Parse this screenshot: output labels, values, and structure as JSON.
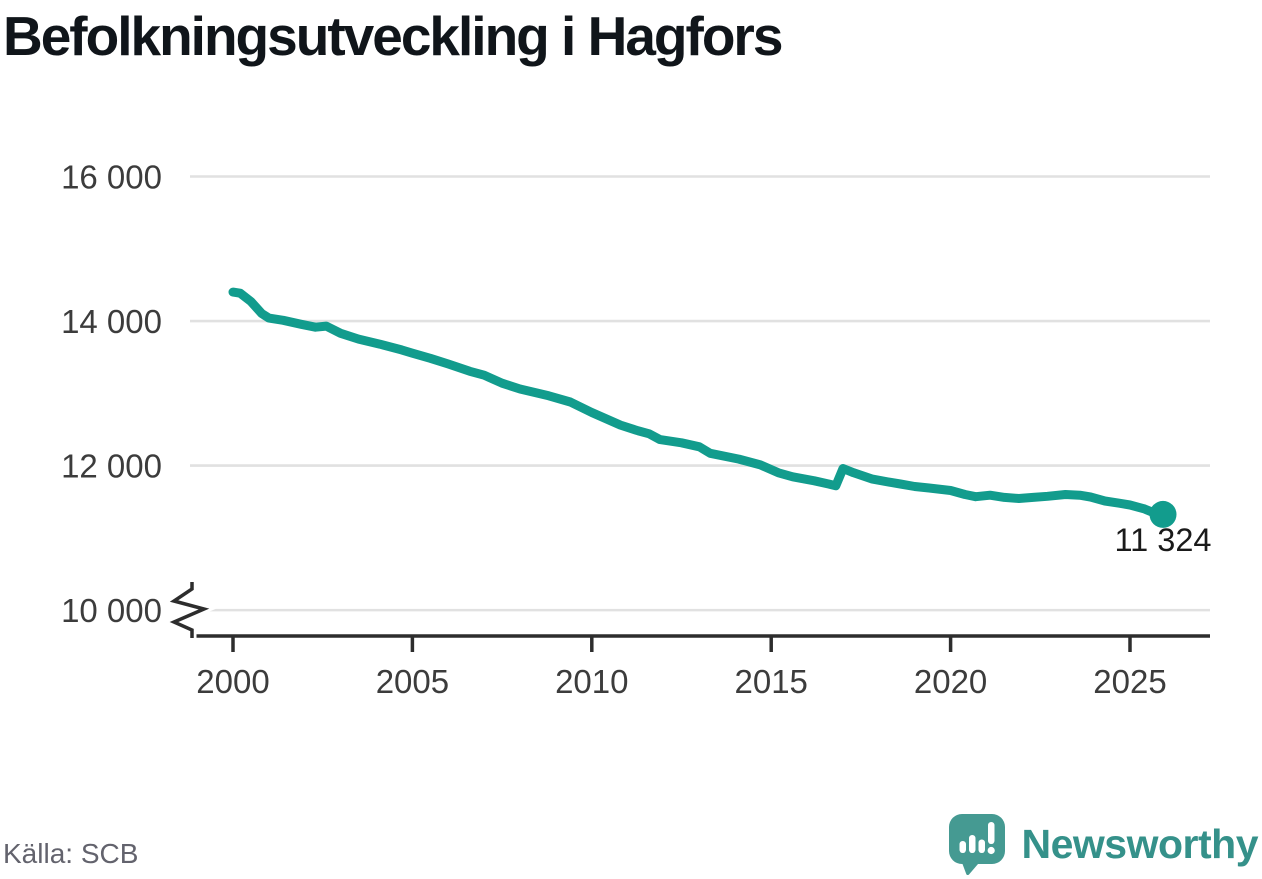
{
  "title": "Befolkningsutveckling i Hagfors",
  "source": "Källa: SCB",
  "logo": {
    "text": "Newsworthy",
    "icon": "newsworthy-speech-bubble-chart-icon"
  },
  "colors": {
    "line": "#129c8d",
    "grid": "#e1e1e1",
    "axis": "#2d2d2d",
    "tick_label": "#3c3c3c",
    "title": "#10151a",
    "source": "#63636d",
    "end_label": "#1a1a1a",
    "logo_icon": "#459a92",
    "logo_text": "#35918a"
  },
  "chart_data": {
    "type": "line",
    "title": "Befolkningsutveckling i Hagfors",
    "xlabel": "",
    "ylabel": "",
    "x_ticks": [
      2000,
      2005,
      2010,
      2015,
      2020,
      2025
    ],
    "x_tick_labels": [
      "2000",
      "2005",
      "2010",
      "2015",
      "2020",
      "2025"
    ],
    "y_ticks": [
      10000,
      12000,
      14000,
      16000
    ],
    "y_tick_labels": [
      "10 000",
      "12 000",
      "14 000",
      "16 000"
    ],
    "ylim": [
      10000,
      16000
    ],
    "xlim": [
      1998.8,
      2027.2
    ],
    "grid": "horizontal",
    "axis_break_at_bottom": true,
    "legend": "none",
    "end_label": "11 324",
    "end_value": 11324,
    "series": [
      {
        "points": [
          [
            2000.0,
            14400
          ],
          [
            2000.2,
            14385
          ],
          [
            2000.5,
            14270
          ],
          [
            2000.8,
            14105
          ],
          [
            2001.0,
            14040
          ],
          [
            2001.4,
            14010
          ],
          [
            2001.9,
            13955
          ],
          [
            2002.3,
            13915
          ],
          [
            2002.6,
            13930
          ],
          [
            2003.0,
            13830
          ],
          [
            2003.5,
            13750
          ],
          [
            2004.1,
            13680
          ],
          [
            2004.7,
            13600
          ],
          [
            2005.0,
            13555
          ],
          [
            2005.5,
            13485
          ],
          [
            2006.0,
            13405
          ],
          [
            2006.6,
            13305
          ],
          [
            2007.0,
            13250
          ],
          [
            2007.5,
            13140
          ],
          [
            2008.0,
            13060
          ],
          [
            2008.8,
            12965
          ],
          [
            2009.4,
            12880
          ],
          [
            2010.0,
            12735
          ],
          [
            2010.8,
            12560
          ],
          [
            2011.3,
            12480
          ],
          [
            2011.6,
            12440
          ],
          [
            2011.9,
            12360
          ],
          [
            2012.5,
            12315
          ],
          [
            2013.0,
            12260
          ],
          [
            2013.3,
            12170
          ],
          [
            2014.1,
            12090
          ],
          [
            2014.7,
            12010
          ],
          [
            2015.2,
            11900
          ],
          [
            2015.6,
            11845
          ],
          [
            2016.2,
            11790
          ],
          [
            2016.6,
            11745
          ],
          [
            2016.8,
            11720
          ],
          [
            2017.0,
            11960
          ],
          [
            2017.3,
            11900
          ],
          [
            2017.8,
            11815
          ],
          [
            2018.3,
            11770
          ],
          [
            2018.6,
            11745
          ],
          [
            2019.0,
            11710
          ],
          [
            2019.4,
            11690
          ],
          [
            2020.0,
            11655
          ],
          [
            2020.4,
            11600
          ],
          [
            2020.7,
            11570
          ],
          [
            2021.1,
            11590
          ],
          [
            2021.5,
            11560
          ],
          [
            2021.9,
            11545
          ],
          [
            2022.3,
            11560
          ],
          [
            2022.7,
            11575
          ],
          [
            2023.2,
            11600
          ],
          [
            2023.6,
            11590
          ],
          [
            2023.9,
            11565
          ],
          [
            2024.3,
            11510
          ],
          [
            2024.7,
            11480
          ],
          [
            2025.0,
            11455
          ],
          [
            2025.4,
            11400
          ],
          [
            2025.7,
            11340
          ],
          [
            2025.92,
            11324
          ]
        ]
      }
    ]
  }
}
